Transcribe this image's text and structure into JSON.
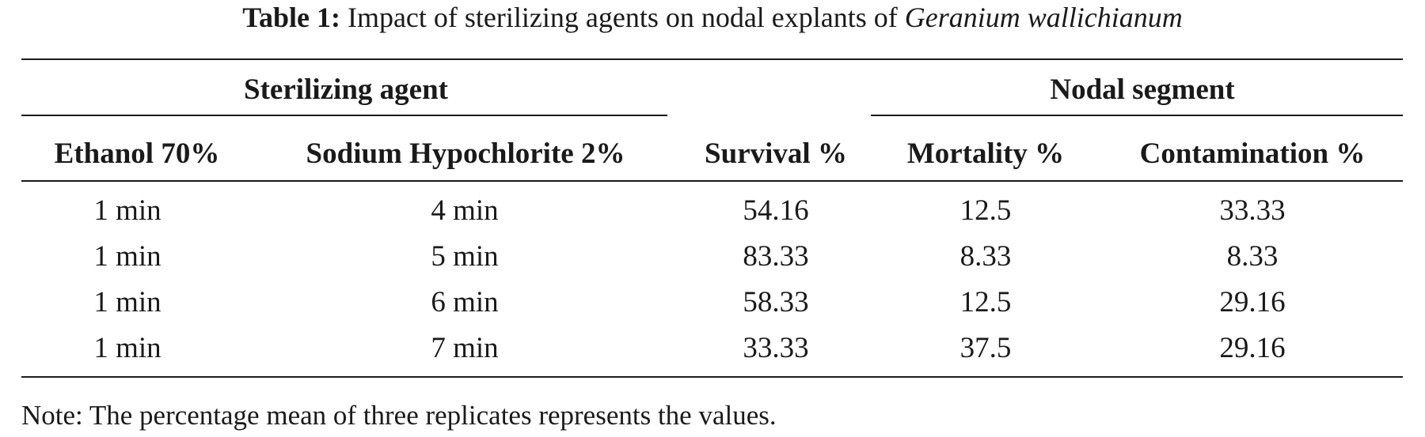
{
  "caption": {
    "label": "Table 1:",
    "text": "Impact of sterilizing agents on nodal explants of",
    "species": "Geranium wallichianum"
  },
  "table": {
    "group_headers": {
      "sterilizing_agent": "Sterilizing agent",
      "nodal_segment": "Nodal segment"
    },
    "columns": [
      "Ethanol 70%",
      "Sodium Hypochlorite 2%",
      "Survival %",
      "Mortality %",
      "Contamination %"
    ],
    "rows": [
      [
        "1 min",
        "4 min",
        "54.16",
        "12.5",
        "33.33"
      ],
      [
        "1 min",
        "5 min",
        "83.33",
        "8.33",
        "8.33"
      ],
      [
        "1 min",
        "6 min",
        "58.33",
        "12.5",
        "29.16"
      ],
      [
        "1 min",
        "7 min",
        "33.33",
        "37.5",
        "29.16"
      ]
    ]
  },
  "note": "Note: The percentage mean of three replicates represents the values."
}
